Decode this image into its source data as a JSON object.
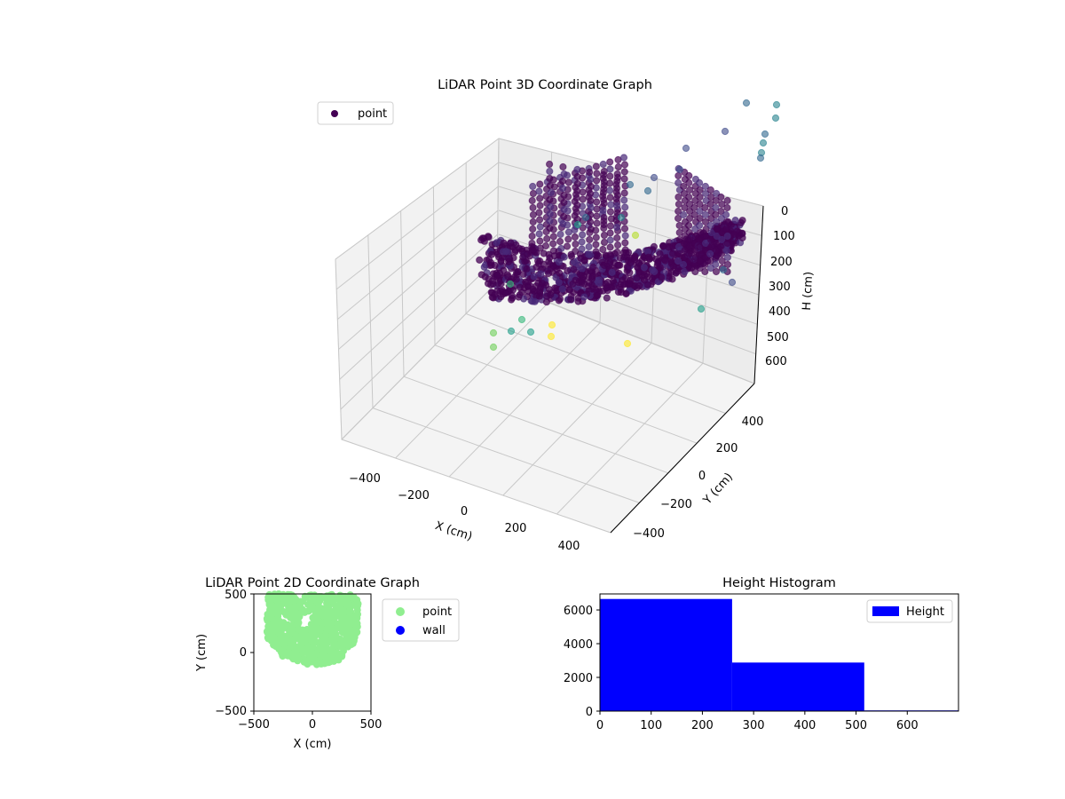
{
  "colors": {
    "viridis": [
      "#440154",
      "#482878",
      "#3e4989",
      "#31688e",
      "#26828e",
      "#1f9e89",
      "#35b779",
      "#6ece58",
      "#b5de2b",
      "#fde725"
    ],
    "point2d": "#90ee90",
    "wall": "#0000ff",
    "hist": "#0000ff"
  },
  "chart_data": [
    {
      "type": "scatter",
      "title": "LiDAR Point 3D Coordinate Graph",
      "xlabel": "X (cm)",
      "ylabel": "Y (cm)",
      "zlabel": "H (cm)",
      "xticks": [
        "−400",
        "−200",
        "0",
        "200",
        "400"
      ],
      "yticks": [
        "−400",
        "−200",
        "0",
        "200",
        "400"
      ],
      "zticks": [
        "0",
        "100",
        "200",
        "300",
        "400",
        "500",
        "600"
      ],
      "xlim": [
        -480,
        480
      ],
      "ylim": [
        -480,
        480
      ],
      "zlim": [
        0,
        680
      ],
      "z_inverted": true,
      "legend": [
        {
          "name": "point"
        }
      ],
      "legend_position": "top-left",
      "grid": true
    },
    {
      "type": "scatter",
      "title": "LiDAR Point 2D Coordinate Graph",
      "xlabel": "X (cm)",
      "ylabel": "Y (cm)",
      "xlim": [
        -500,
        500
      ],
      "ylim": [
        -500,
        500
      ],
      "xticks": [
        "−500",
        "0",
        "500"
      ],
      "yticks": [
        "−500",
        "0",
        "500"
      ],
      "legend": [
        {
          "name": "point"
        },
        {
          "name": "wall"
        }
      ],
      "legend_position": "outside right"
    },
    {
      "type": "bar",
      "title": "Height Histogram",
      "bins": [
        [
          0,
          258
        ],
        [
          258,
          516
        ],
        [
          516,
          700
        ]
      ],
      "values": [
        6650,
        2880,
        40
      ],
      "xlim": [
        0,
        700
      ],
      "ylim": [
        0,
        6950
      ],
      "xticks": [
        "0",
        "100",
        "200",
        "300",
        "400",
        "500",
        "600"
      ],
      "yticks": [
        "0",
        "2000",
        "4000",
        "6000"
      ],
      "legend": [
        {
          "name": "Height"
        }
      ],
      "legend_position": "top-right"
    }
  ]
}
